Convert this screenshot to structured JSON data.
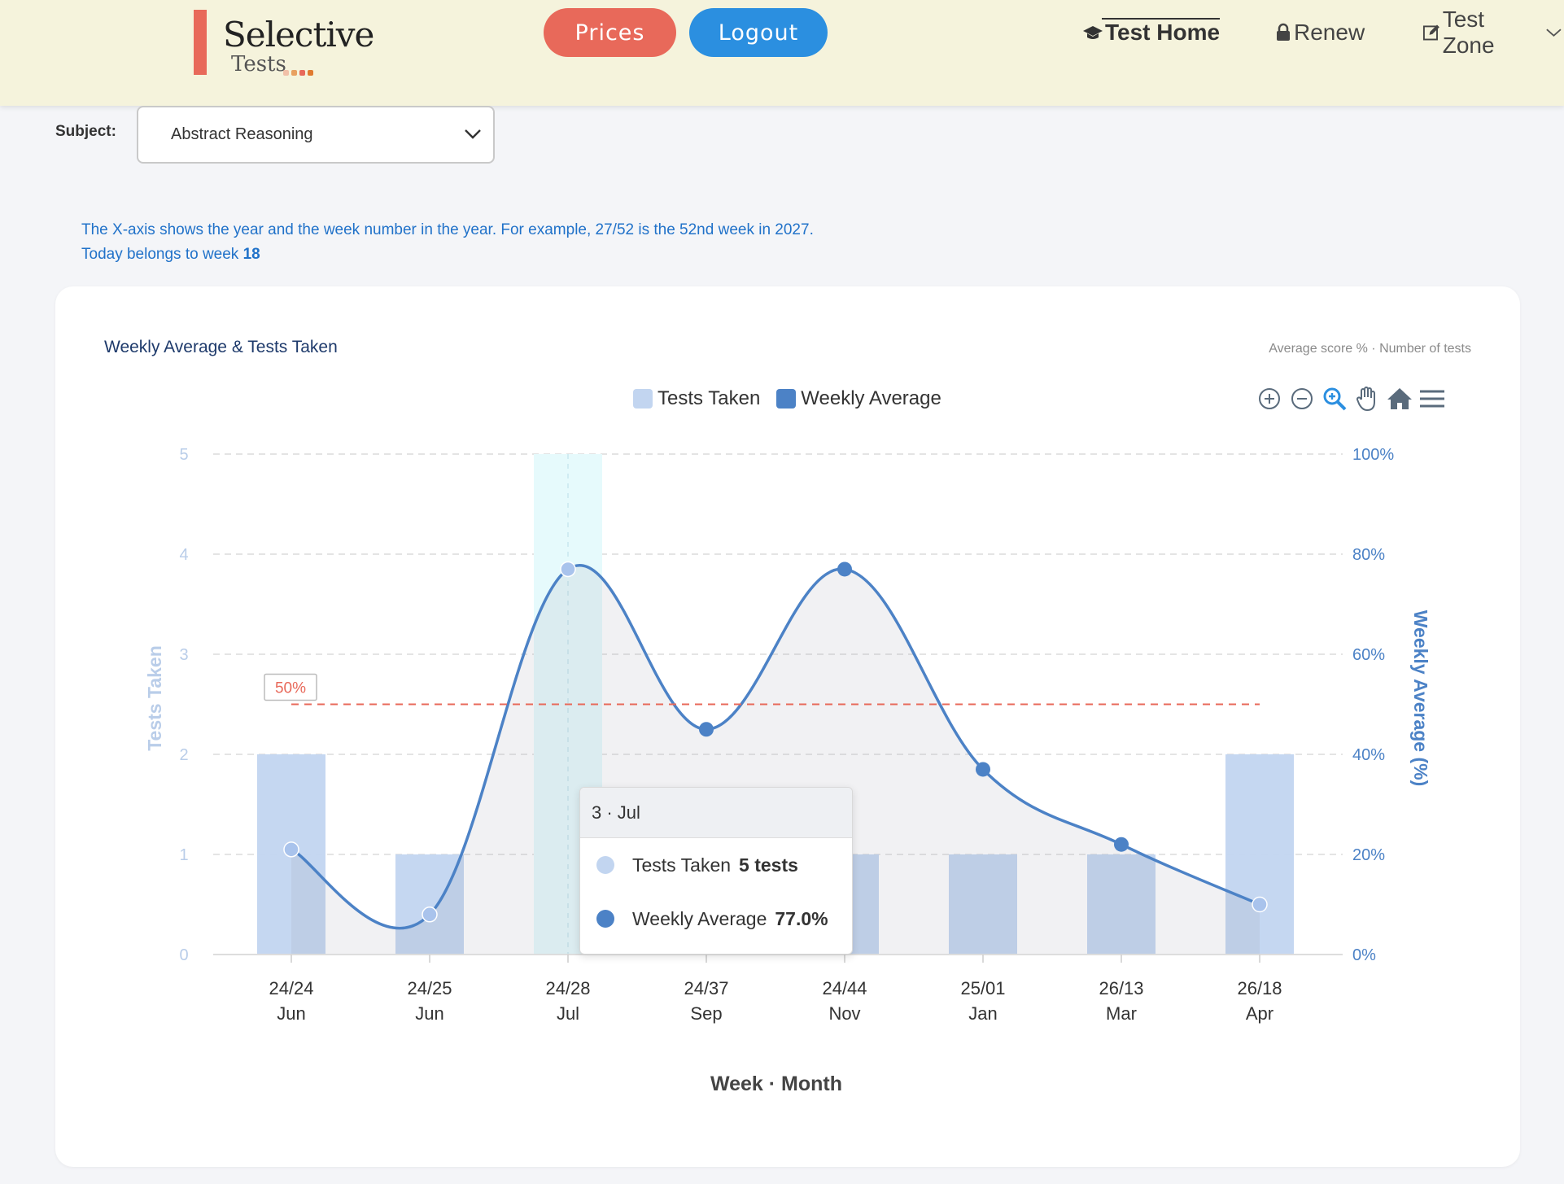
{
  "header": {
    "logo": {
      "word": "Selective",
      "sub": "Tests"
    },
    "prices_label": "Prices",
    "logout_label": "Logout",
    "nav": [
      {
        "label": "Test Home",
        "icon": "graduation-cap-icon"
      },
      {
        "label": "Renew",
        "icon": "lock-icon"
      },
      {
        "label": "Test Zone",
        "icon": "edit-icon"
      }
    ]
  },
  "subject": {
    "label": "Subject:",
    "value": "Abstract Reasoning"
  },
  "info": {
    "line1": "The X-axis shows the year and the week number in the year. For example, 27/52 is the 52nd week in 2027.",
    "line2_prefix": "Today belongs to week",
    "current_week": "18"
  },
  "card": {
    "title": "Weekly Average & Tests Taken",
    "subtitle": "Average score % · Number of tests"
  },
  "toolbar_icons": [
    "zoom-in-icon",
    "zoom-out-icon",
    "zoom-select-icon",
    "pan-hand-icon",
    "home-reset-icon",
    "menu-icon"
  ],
  "colors": {
    "bars": "#c2d5f0",
    "line": "#4c82c6",
    "threshold": "#e8695a",
    "highlight": "#e6fafc",
    "prices": "#e8695a",
    "logout": "#2b8fe0",
    "left_axis": "#b9cde9"
  },
  "chart_data": {
    "type": "bar",
    "title": "",
    "xlabel": "Week · Month",
    "categories": [
      "24/24",
      "24/25",
      "24/28",
      "24/37",
      "24/44",
      "25/01",
      "26/13",
      "26/18"
    ],
    "category_months": [
      "Jun",
      "Jun",
      "Jul",
      "Sep",
      "Nov",
      "Jan",
      "Mar",
      "Apr"
    ],
    "series": [
      {
        "name": "Tests Taken",
        "type": "bar",
        "axis": "left",
        "values": [
          2,
          1,
          5,
          1,
          1,
          1,
          1,
          2
        ]
      },
      {
        "name": "Weekly Average",
        "type": "line",
        "axis": "right",
        "values": [
          21,
          8,
          77,
          45,
          77,
          37,
          22,
          10
        ]
      }
    ],
    "left_axis": {
      "label": "Tests Taken",
      "ylim": [
        0,
        5
      ],
      "ticks": [
        "0",
        "1",
        "2",
        "3",
        "4",
        "5"
      ]
    },
    "right_axis": {
      "label": "Weekly Average (%)",
      "ylim": [
        0,
        100
      ],
      "ticks": [
        "0%",
        "20%",
        "40%",
        "60%",
        "80%",
        "100%"
      ]
    },
    "threshold": {
      "value": 50,
      "label": "50%"
    },
    "legend": [
      "Tests Taken",
      "Weekly Average"
    ],
    "legend_position": "top-center",
    "grid": true,
    "highlighted_index": 2,
    "tooltip": {
      "header": "3 · Jul",
      "rows": [
        {
          "name": "Tests Taken",
          "value": "5 tests"
        },
        {
          "name": "Weekly Average",
          "value": "77.0%"
        }
      ]
    }
  }
}
